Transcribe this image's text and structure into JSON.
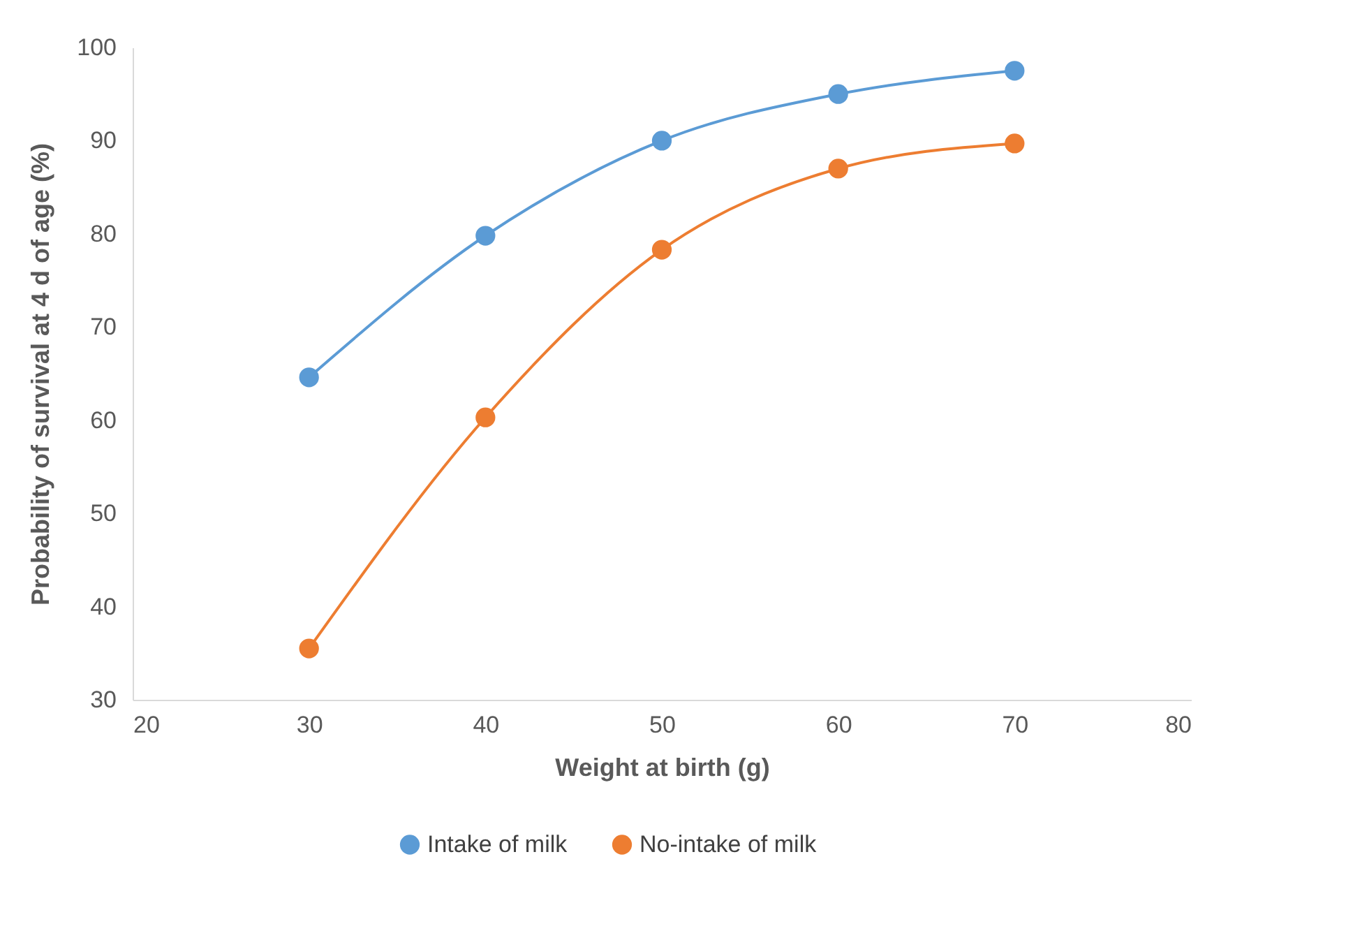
{
  "chart_data": {
    "type": "line",
    "xlabel": "Weight at birth (g)",
    "ylabel": "Probability of survival at 4 d of age (%)",
    "x": [
      30,
      40,
      50,
      60,
      70
    ],
    "series": [
      {
        "name": "Intake of milk",
        "color": "#5b9bd5",
        "values": [
          64.6,
          79.8,
          90,
          95,
          97.5
        ]
      },
      {
        "name": "No-intake of milk",
        "color": "#ed7d31",
        "values": [
          35.5,
          60.3,
          78.3,
          87,
          89.7
        ]
      }
    ],
    "xlim": [
      20,
      80
    ],
    "xticks": [
      20,
      30,
      40,
      50,
      60,
      70,
      80
    ],
    "ylim": [
      30,
      100
    ],
    "yticks": [
      30,
      40,
      50,
      60,
      70,
      80,
      90,
      100
    ],
    "grid": false,
    "legend": "bottom",
    "marker": "circle",
    "line_style": "solid"
  }
}
